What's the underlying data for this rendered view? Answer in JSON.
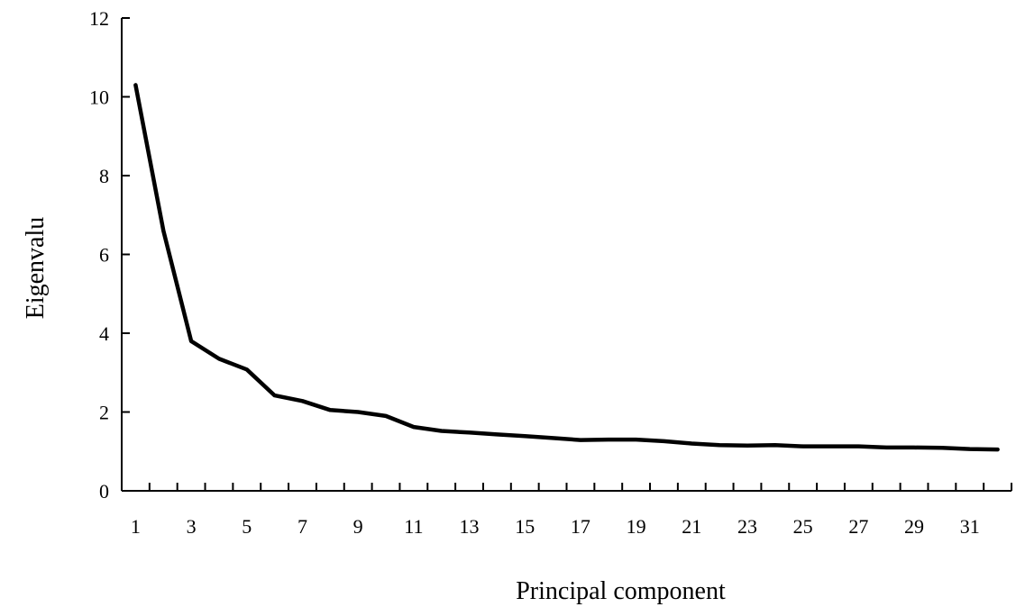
{
  "chart_data": {
    "type": "line",
    "title": "",
    "xlabel": "Principal component",
    "ylabel": "Eigenvalu",
    "x_tick_labels": [
      "1",
      "3",
      "5",
      "7",
      "9",
      "11",
      "13",
      "15",
      "17",
      "19",
      "21",
      "23",
      "25",
      "27",
      "29",
      "31"
    ],
    "y_tick_labels": [
      "0",
      "2",
      "4",
      "6",
      "8",
      "10",
      "12"
    ],
    "ylim": [
      0,
      12
    ],
    "x_categories": 32,
    "grid": false,
    "legend": "none",
    "series": [
      {
        "color": "#000000",
        "x": [
          1,
          2,
          3,
          4,
          5,
          6,
          7,
          8,
          9,
          10,
          11,
          12,
          13,
          14,
          15,
          16,
          17,
          18,
          19,
          20,
          21,
          22,
          23,
          24,
          25,
          26,
          27,
          28,
          29,
          30,
          31,
          32
        ],
        "values": [
          10.3,
          6.6,
          3.8,
          3.35,
          3.08,
          2.42,
          2.28,
          2.05,
          2.0,
          1.9,
          1.62,
          1.52,
          1.48,
          1.43,
          1.39,
          1.34,
          1.29,
          1.3,
          1.3,
          1.26,
          1.2,
          1.16,
          1.15,
          1.16,
          1.13,
          1.13,
          1.13,
          1.1,
          1.1,
          1.09,
          1.06,
          1.05
        ]
      }
    ]
  }
}
